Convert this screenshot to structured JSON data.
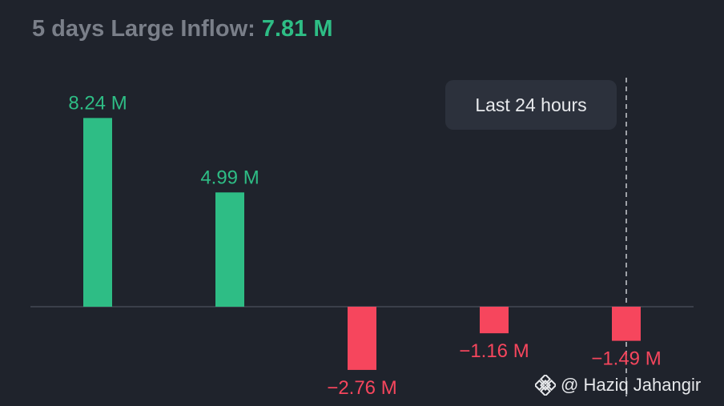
{
  "title": {
    "prefix": "5 days Large Inflow:",
    "total": "7.81 M"
  },
  "tooltip": {
    "label": "Last 24 hours"
  },
  "watermark": {
    "icon": "binance-logo-icon",
    "text": "@ Haziq Jahangir"
  },
  "colors": {
    "positive": "#2ebd85",
    "negative": "#f6465d",
    "background": "#1f232c",
    "baseline": "#3a3f4a"
  },
  "chart_data": {
    "type": "bar",
    "title": "5 days Large Inflow: 7.81 M",
    "categories": [
      "",
      "",
      "",
      "",
      ""
    ],
    "values": [
      8.24,
      4.99,
      -2.76,
      -1.16,
      -1.49
    ],
    "labels": [
      "8.24 M",
      "4.99 M",
      "−2.76 M",
      "−1.16 M",
      "−1.49 M"
    ],
    "unit": "M",
    "xlabel": "",
    "ylabel": "",
    "grid": false,
    "highlight": {
      "index": 4,
      "label": "Last 24 hours"
    }
  }
}
